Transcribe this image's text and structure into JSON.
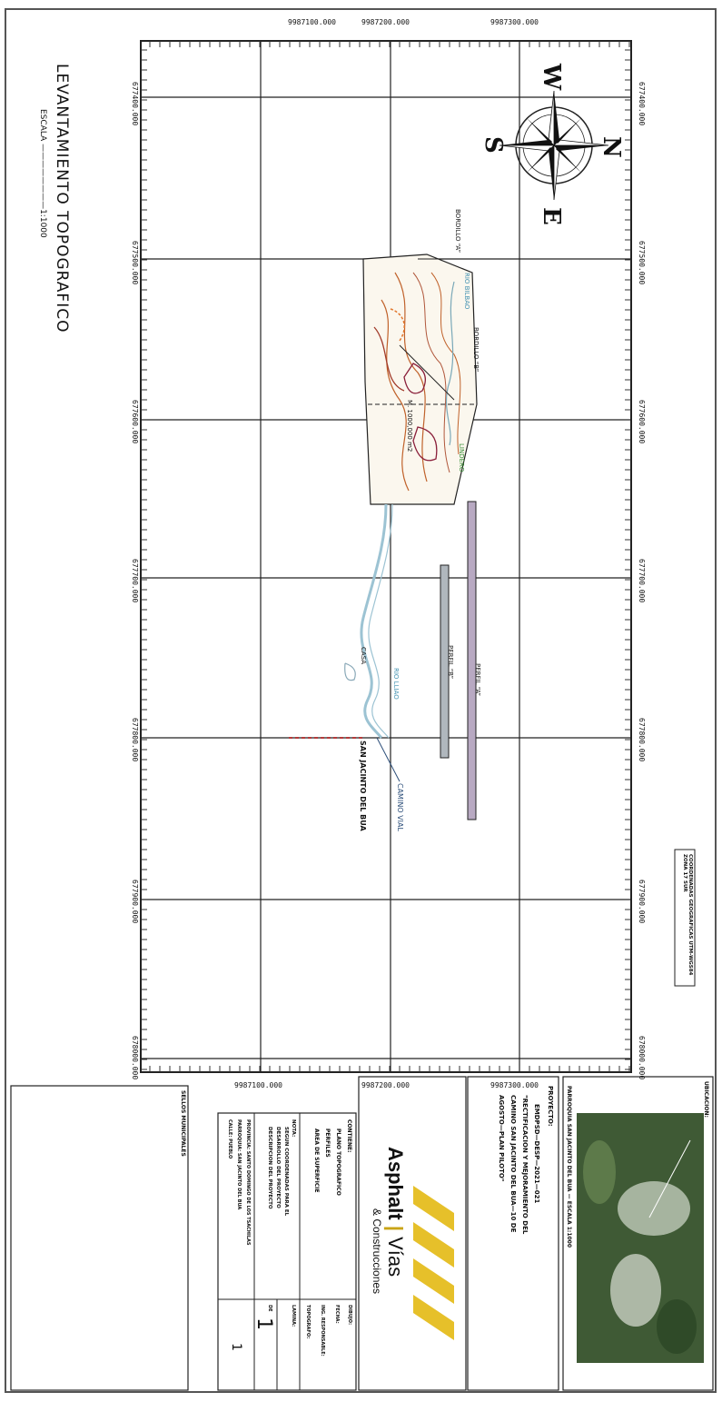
{
  "grid": {
    "coords_top": [
      "677400.000",
      "677500.000",
      "677600.000",
      "677700.000",
      "677800.000",
      "677900.000",
      "678000.000"
    ],
    "coords_side": [
      "9987100.000",
      "9987200.000",
      "9987300.000"
    ]
  },
  "title_block_left": {
    "title": "LEVANTAMIENTO TOPOGRAFICO",
    "scale": "ESCALA ————————1:1000"
  },
  "compass": {
    "n": "N",
    "s": "S",
    "e": "E",
    "w": "W"
  },
  "map_labels": {
    "bordillo_a": "BORDILLO “A”",
    "bordillo_b": "BORDILLO “B”",
    "rio": "RIO BILBAO",
    "lindero": "LINDERO",
    "perfil_a": "PERFIL “A”",
    "perfil_b": "PERFIL “B”",
    "casa": "CASA",
    "rio2": "RIO LLIAO",
    "san_jacinto": "SAN JACINTO DEL BUA",
    "camino": "CAMINO VIAL",
    "zone": "M. 1000,000 m2"
  },
  "note_box": "COORDENADAS GEOGRAFICAS UTM-WGS84 ZONA 17 SUR",
  "location": {
    "header": "UBICACION:",
    "caption": "PARROQUIA SAN JACINTO DEL BUA — ESCALA 1:1000"
  },
  "project": {
    "label": "PROYECTO:",
    "line1": "EMDPSD—DESP—2021—021",
    "line2": "\"RECTIFICACION Y MEJORAMIENTO DEL",
    "line3": "CAMINO SAN JACINTO DEL BUA—10 DE",
    "line4": "AGOSTO—PLAN PILOTO\""
  },
  "logo": {
    "name_a": "Asphalt",
    "name_b": "Vías",
    "sub": "& Construcciones"
  },
  "contents": {
    "label": "CONTIENE:",
    "items": [
      "PLANO TOPOGRAFICO",
      "PERFILES",
      "AREA DE SUPERFICIE"
    ]
  },
  "notes": {
    "label": "NOTA:",
    "lines": [
      "SEGUN COORDENADAS PARA EL",
      "DESARROLLO DEL PROYECTO",
      "DESCRIPCION DEL PROYECTO"
    ]
  },
  "province": {
    "lines": [
      "PROVINCIA: SANTO DOMINGO DE LOS TSACHILAS",
      "PARROQUIA: SAN JACINTO DEL BUA",
      "CALLE: PUEBLO"
    ]
  },
  "signatures": {
    "r1": "DIBUJO:",
    "r2": "FECHA:",
    "r3": "ING. RESPONSABLE:",
    "r4": "TOPOGRAFO:"
  },
  "sheet_number": {
    "label": "LAMINA:",
    "num": "1",
    "de": "DE",
    "total": "1"
  },
  "stamps": {
    "label": "SELLOS MUNICIPALES"
  }
}
